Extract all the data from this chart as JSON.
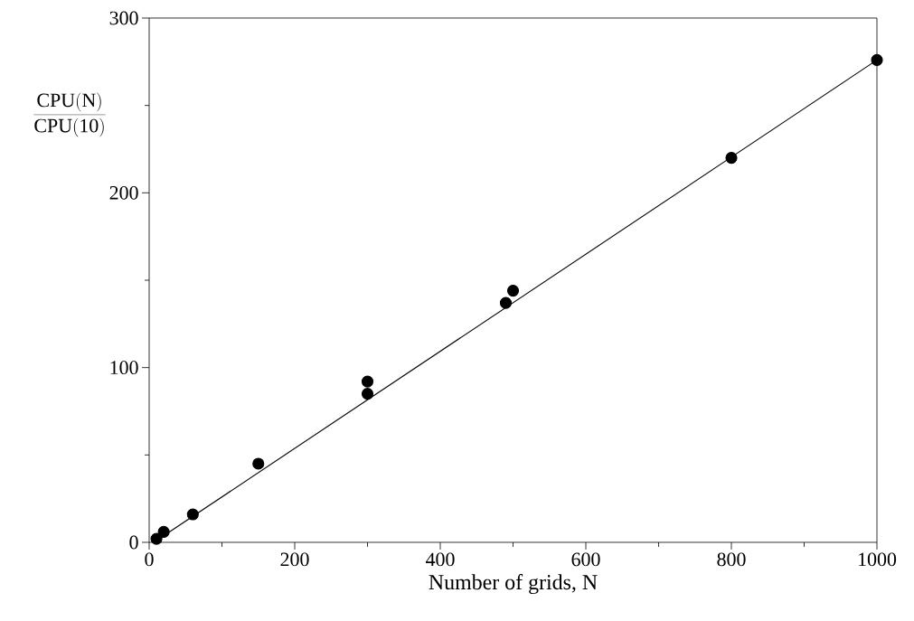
{
  "chart_data": {
    "type": "scatter",
    "xlabel": "Number of grids, N",
    "ylabel": "\\frac{\\mathrm{CPU(N)}}{\\mathrm{CPU(10)}}",
    "xlim": [
      0,
      1000
    ],
    "ylim": [
      0,
      300
    ],
    "xticks": [
      0,
      200,
      400,
      600,
      800,
      1000
    ],
    "yticks": [
      0,
      100,
      200,
      300
    ],
    "grid": false,
    "series": [
      {
        "color": "#000000",
        "marker": "circle",
        "x": [
          10,
          20,
          60,
          150,
          300,
          300,
          490,
          500,
          800,
          1000
        ],
        "values": [
          2,
          6,
          16,
          45,
          92,
          85,
          137,
          144,
          220,
          276
        ]
      },
      {
        "type": "line",
        "color": "#000000",
        "marker": "none",
        "line_style": "solid",
        "x": [
          10,
          1000
        ],
        "values": [
          1,
          276
        ]
      }
    ]
  }
}
